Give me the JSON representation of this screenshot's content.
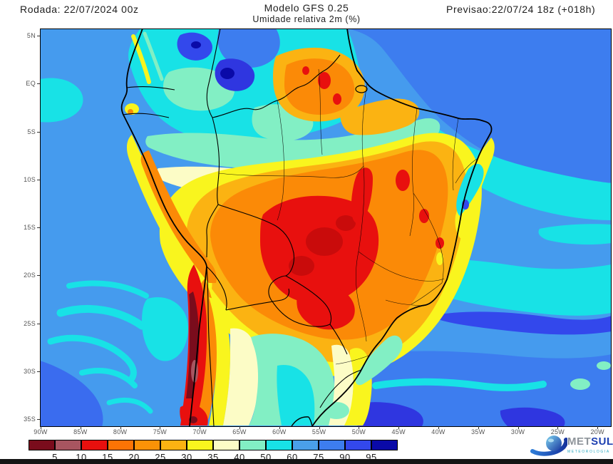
{
  "header": {
    "run_label": "Rodada: 22/07/2024 00z",
    "model_title": "Modelo GFS 0.25",
    "variable_title": "Umidade relativa 2m (%)",
    "forecast_label": "Previsao:22/07/24 18z (+018h)"
  },
  "map": {
    "lat_labels": [
      "5N",
      "EQ",
      "5S",
      "10S",
      "15S",
      "20S",
      "25S",
      "30S",
      "35S"
    ],
    "lon_labels": [
      "90W",
      "85W",
      "80W",
      "75W",
      "70W",
      "65W",
      "60W",
      "55W",
      "50W",
      "45W",
      "40W",
      "35W",
      "30W",
      "25W",
      "20W"
    ],
    "ocean_base_color": "#459BEE"
  },
  "colorbar": {
    "tick_values": [
      "5",
      "10",
      "15",
      "20",
      "25",
      "30",
      "35",
      "40",
      "50",
      "60",
      "75",
      "90",
      "95"
    ],
    "colors": [
      "#7a0c1c",
      "#a85560",
      "#e8100e",
      "#fb7405",
      "#fb9207",
      "#fbb312",
      "#f9f51e",
      "#fcfcc6",
      "#82efc4",
      "#18e2e6",
      "#4aa0e9",
      "#3d7def",
      "#3348ec",
      "#0a0aa8"
    ]
  },
  "logo": {
    "brand_met": "MET",
    "brand_sul": "SUL",
    "tagline": "METEOROLOGIA"
  }
}
